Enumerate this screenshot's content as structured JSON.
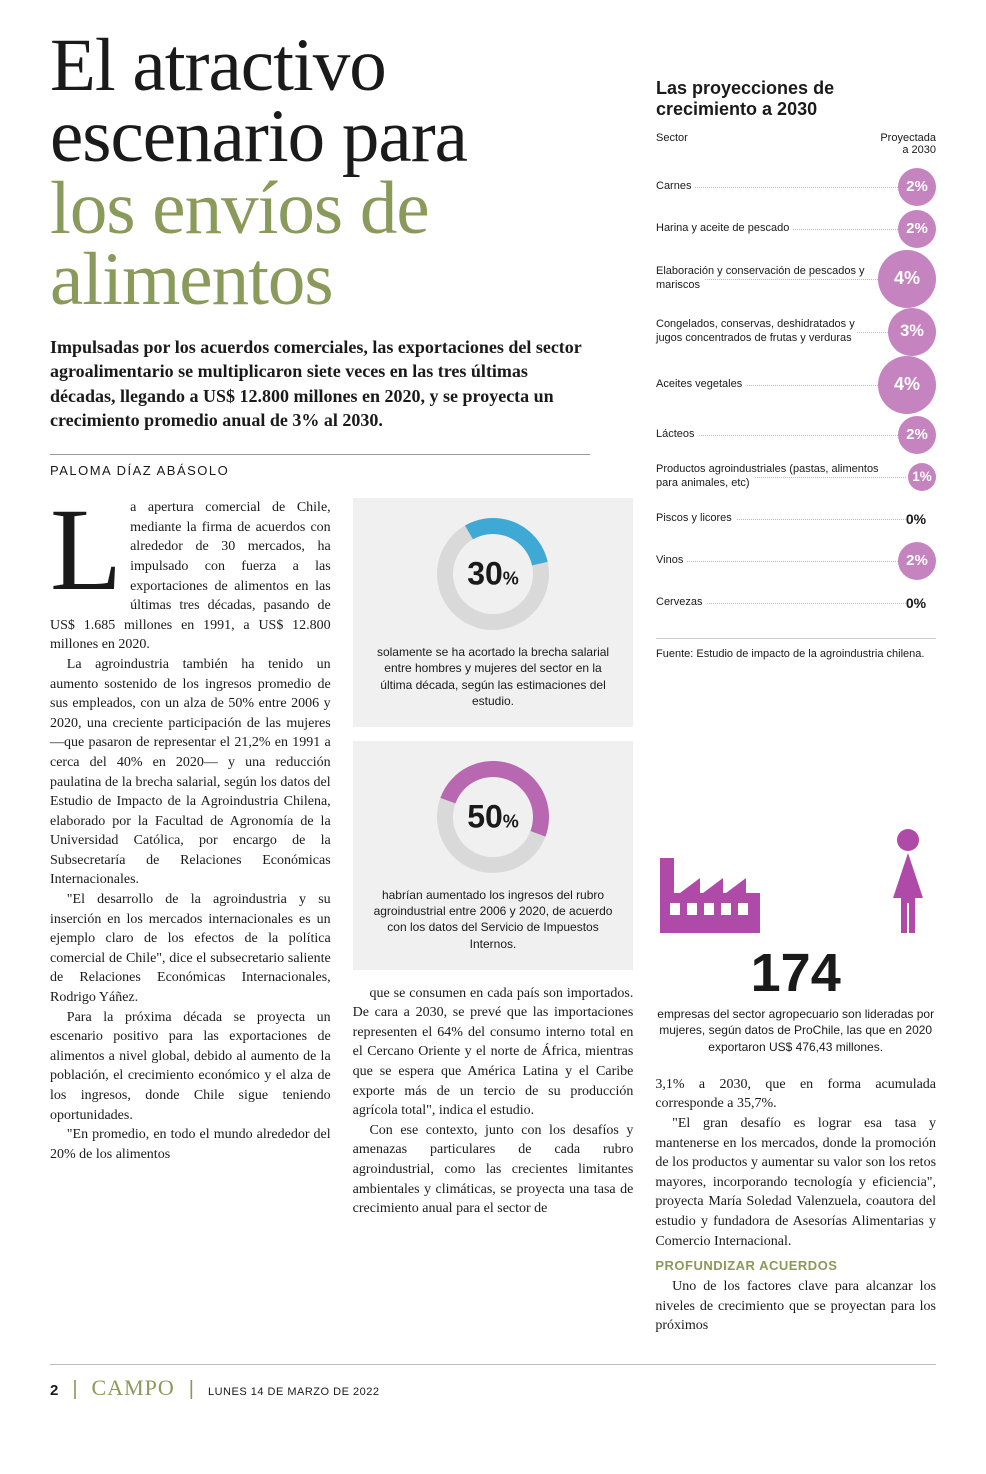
{
  "headline": {
    "line1": "El atractivo",
    "line2": "escenario para",
    "line3": "los envíos de",
    "line4": "alimentos"
  },
  "subhead": "Impulsadas por los acuerdos comerciales, las exportaciones del sector agroalimentario se multiplicaron siete veces en las tres últimas décadas, llegando a US$ 12.800 millones en 2020, y se proyecta un crecimiento promedio anual de 3% al 2030.",
  "byline": "PALOMA DÍAZ ABÁSOLO",
  "dropcap": "L",
  "body": {
    "col1_p1": "a apertura comercial de Chile, mediante la firma de acuerdos con alrededor de 30 mercados, ha impulsado con fuerza a las exportaciones de alimentos en las últimas tres décadas, pasando de US$ 1.685 millones en 1991, a US$ 12.800 millones en 2020.",
    "col1_p2": "La agroindustria también ha tenido un aumento sostenido de los ingresos promedio de sus empleados, con un alza de 50% entre 2006 y 2020, una creciente participación de las mujeres —que pasaron de representar el 21,2% en 1991 a cerca del 40% en 2020— y una reducción paulatina de la brecha salarial, según los datos del Estudio de Impacto de la Agroindustria Chilena, elaborado por la Facultad de Agronomía de la Universidad Católica, por encargo de la Subsecretaría de Relaciones Económicas Internacionales.",
    "col1_p3": "\"El desarrollo de la agroindustria y su inserción en los mercados internacionales es un ejemplo claro de los efectos de la política comercial de Chile\", dice el subsecretario saliente de Relaciones Económicas Internacionales, Rodrigo Yáñez.",
    "col1_p4": "Para la próxima década se proyecta un escenario positivo para las exportaciones de alimentos a nivel global, debido al aumento de la población, el crecimiento económico y el alza de los ingresos, donde Chile sigue teniendo oportunidades.",
    "col1_p5": "\"En promedio, en todo el mundo alrededor del 20% de los alimentos",
    "col2_p1": "que se consumen en cada país son importados. De cara a 2030, se prevé que las importaciones representen el 64% del consumo interno total en el Cercano Oriente y el norte de África, mientras que se espera que América Latina y el Caribe exporte más de un tercio de su producción agrícola total\", indica el estudio.",
    "col2_p2": "Con ese contexto, junto con los desafíos y amenazas particulares de cada rubro agroindustrial, como las crecientes limitantes ambientales y climáticas, se proyecta una tasa de crecimiento anual para el sector de",
    "col3_p1": "3,1% a 2030, que en forma acumulada corresponde a 35,7%.",
    "col3_p2": "\"El gran desafío es lograr esa tasa y mantenerse en los mercados, donde la promoción de los productos y aumentar su valor son los retos mayores, incorporando tecnología y eficiencia\", proyecta María Soledad Valenzuela, coautora del estudio y fundadora de Asesorías Alimentarias y Comercio Internacional.",
    "col3_head": "PROFUNDIZAR ACUERDOS",
    "col3_p3": "Uno de los factores clave para alcanzar los niveles de crecimiento que se proyectan para los próximos"
  },
  "donut1": {
    "value": 30,
    "label": "30",
    "pct": "%",
    "color": "#3fa9d6",
    "bg": "#d9d9d9",
    "caption": "solamente se ha acortado la brecha salarial entre hombres y mujeres del sector en la última década, según las estimaciones del estudio."
  },
  "donut2": {
    "value": 50,
    "label": "50",
    "pct": "%",
    "color": "#b768b0",
    "bg": "#d9d9d9",
    "caption": "habrían aumentado los ingresos del rubro agroindustrial entre 2006 y 2020, de acuerdo con los datos del Servicio de Impuestos Internos."
  },
  "chart": {
    "title": "Las proyecciones de crecimiento a 2030",
    "col_left": "Sector",
    "col_right_1": "Proyectada",
    "col_right_2": "a 2030",
    "rows": [
      {
        "label": "Carnes",
        "value": 2,
        "display": "2%"
      },
      {
        "label": "Harina y aceite de pescado",
        "value": 2,
        "display": "2%"
      },
      {
        "label": "Elaboración y conservación de pescados y mariscos",
        "value": 4,
        "display": "4%"
      },
      {
        "label": "Congelados, conservas, deshidratados y jugos concentrados de frutas y verduras",
        "value": 3,
        "display": "3%"
      },
      {
        "label": "Aceites vegetales",
        "value": 4,
        "display": "4%"
      },
      {
        "label": "Lácteos",
        "value": 2,
        "display": "2%"
      },
      {
        "label": "Productos agroindustriales (pastas, alimentos para animales, etc)",
        "value": 1,
        "display": "1%"
      },
      {
        "label": "Piscos y licores",
        "value": 0,
        "display": "0%"
      },
      {
        "label": "Vinos",
        "value": 2,
        "display": "2%"
      },
      {
        "label": "Cervezas",
        "value": 0,
        "display": "0%"
      }
    ],
    "bubble_color": "#c583c0",
    "bubble_sizes": {
      "1": 28,
      "2": 38,
      "3": 48,
      "4": 58
    },
    "source": "Fuente: Estudio de impacto de la agroindustria chilena."
  },
  "stat174": {
    "number": "174",
    "caption": "empresas del sector agropecuario son lideradas por mujeres, según datos de ProChile, las que en 2020 exportaron US$ 476,43 millones.",
    "icon_color": "#b04aa8"
  },
  "footer": {
    "page": "2",
    "brand": "CAMPO",
    "date": "LUNES 14 DE MARZO DE 2022"
  }
}
